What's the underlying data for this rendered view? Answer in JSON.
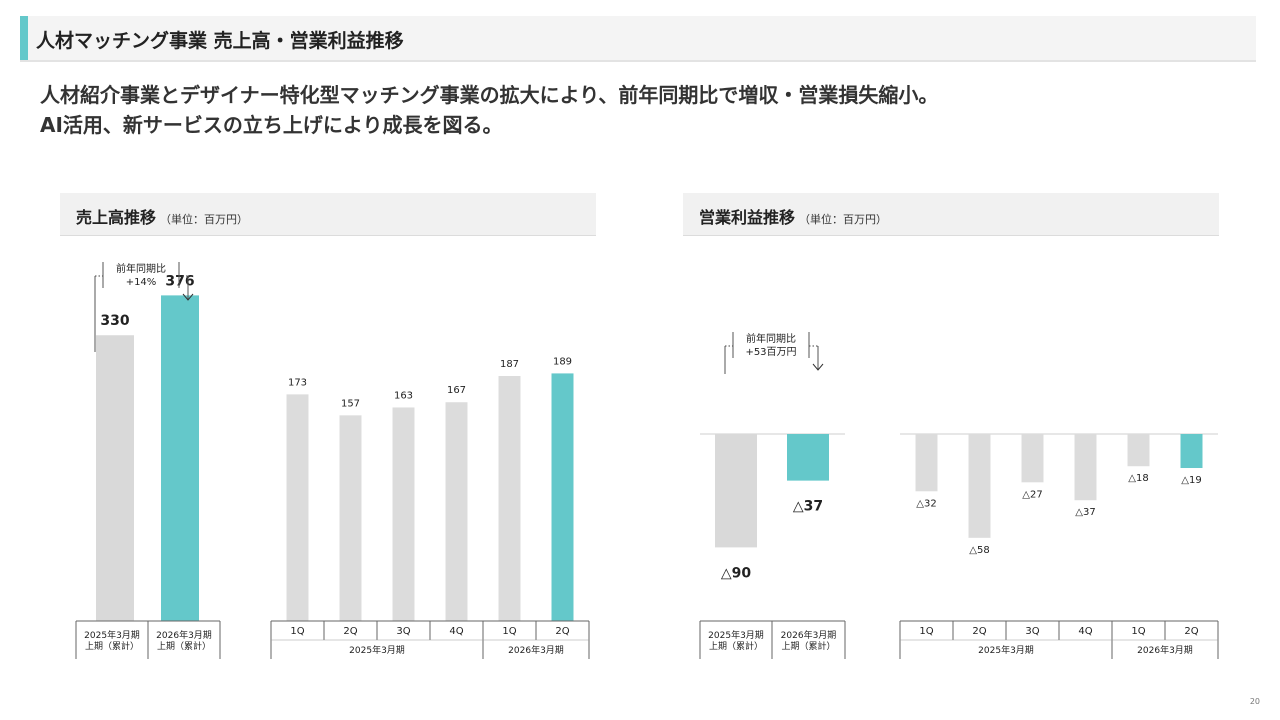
{
  "title": "人材マッチング事業 売上高・営業利益推移",
  "summary": [
    "人材紹介事業とデザイナー特化型マッチング事業の拡大により、前年同期比で増収・営業損失縮小。",
    "AI活用、新サービスの立ち上げにより成長を図る。"
  ],
  "colors": {
    "accent": "#64c8ca",
    "gray": "#d9d9d9",
    "gray_light": "#dcdcdc"
  },
  "page_number": "20",
  "chart_data": [
    {
      "type": "bar",
      "title": "売上高推移",
      "unit": "（単位：百万円）",
      "cumulative": {
        "categories": [
          "2025年3月期\n上期（累計）",
          "2026年3月期\n上期（累計）"
        ],
        "values": [
          330,
          376
        ],
        "labels": [
          "330",
          "376"
        ],
        "highlight": [
          false,
          true
        ],
        "yoy": {
          "line1": "前年同期比",
          "line2": "+14%"
        }
      },
      "quarterly": {
        "categories": [
          "1Q",
          "2Q",
          "3Q",
          "4Q",
          "1Q",
          "2Q"
        ],
        "values": [
          173,
          157,
          163,
          167,
          187,
          189
        ],
        "labels": [
          "173",
          "157",
          "163",
          "167",
          "187",
          "189"
        ],
        "highlight": [
          false,
          false,
          false,
          false,
          false,
          true
        ],
        "fiscal_years": [
          {
            "label": "2025年3月期",
            "count": 4
          },
          {
            "label": "2026年3月期",
            "count": 2
          }
        ]
      }
    },
    {
      "type": "bar",
      "title": "営業利益推移",
      "unit": "（単位：百万円）",
      "cumulative": {
        "categories": [
          "2025年3月期\n上期（累計）",
          "2026年3月期\n上期（累計）"
        ],
        "values": [
          -90,
          -37
        ],
        "labels": [
          "△90",
          "△37"
        ],
        "highlight": [
          false,
          true
        ],
        "yoy": {
          "line1": "前年同期比",
          "line2": "+53百万円"
        }
      },
      "quarterly": {
        "categories": [
          "1Q",
          "2Q",
          "3Q",
          "4Q",
          "1Q",
          "2Q"
        ],
        "values": [
          -32,
          -58,
          -27,
          -37,
          -18,
          -19
        ],
        "labels": [
          "△32",
          "△58",
          "△27",
          "△37",
          "△18",
          "△19"
        ],
        "highlight": [
          false,
          false,
          false,
          false,
          false,
          true
        ],
        "fiscal_years": [
          {
            "label": "2025年3月期",
            "count": 4
          },
          {
            "label": "2026年3月期",
            "count": 2
          }
        ]
      }
    }
  ]
}
